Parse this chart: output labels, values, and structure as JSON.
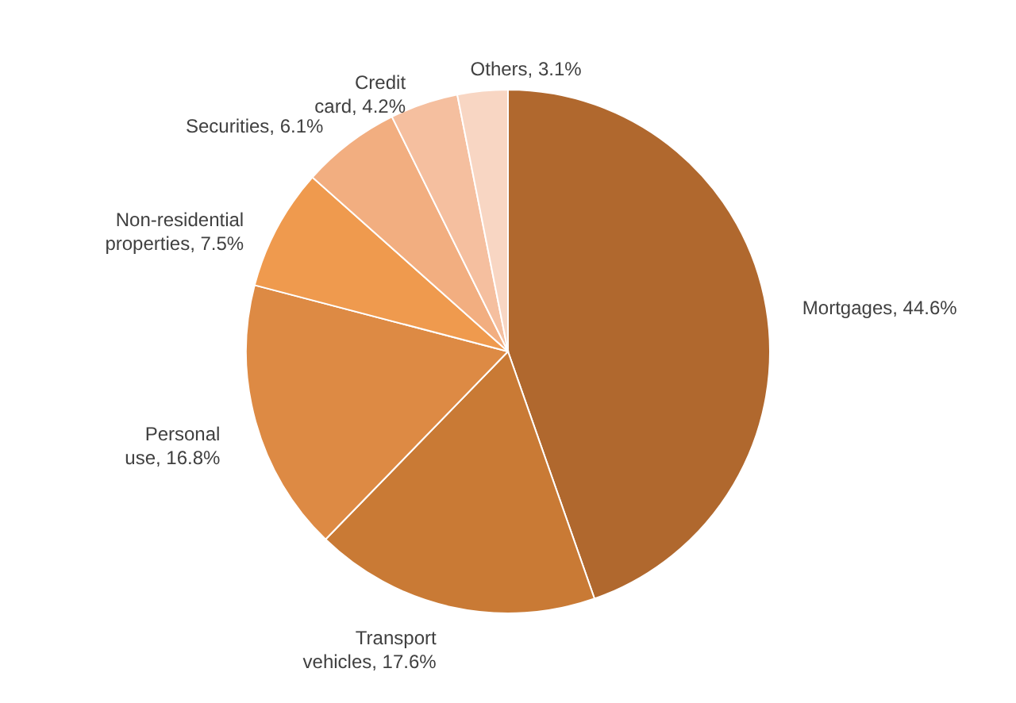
{
  "chart_data": {
    "type": "pie",
    "categories": [
      "Mortgages",
      "Transport vehicles",
      "Personal use",
      "Non-residential properties",
      "Securities",
      "Credit card",
      "Others"
    ],
    "values": [
      44.6,
      17.6,
      16.8,
      7.5,
      6.1,
      4.2,
      3.1
    ],
    "value_labels": [
      "44.6%",
      "17.6%",
      "16.8%",
      "7.5%",
      "6.1%",
      "4.2%",
      "3.1%"
    ],
    "colors": [
      "#b0682e",
      "#c97a35",
      "#dd8a44",
      "#ef9a4e",
      "#f2ae80",
      "#f5bf9f",
      "#f8d6c3"
    ]
  }
}
